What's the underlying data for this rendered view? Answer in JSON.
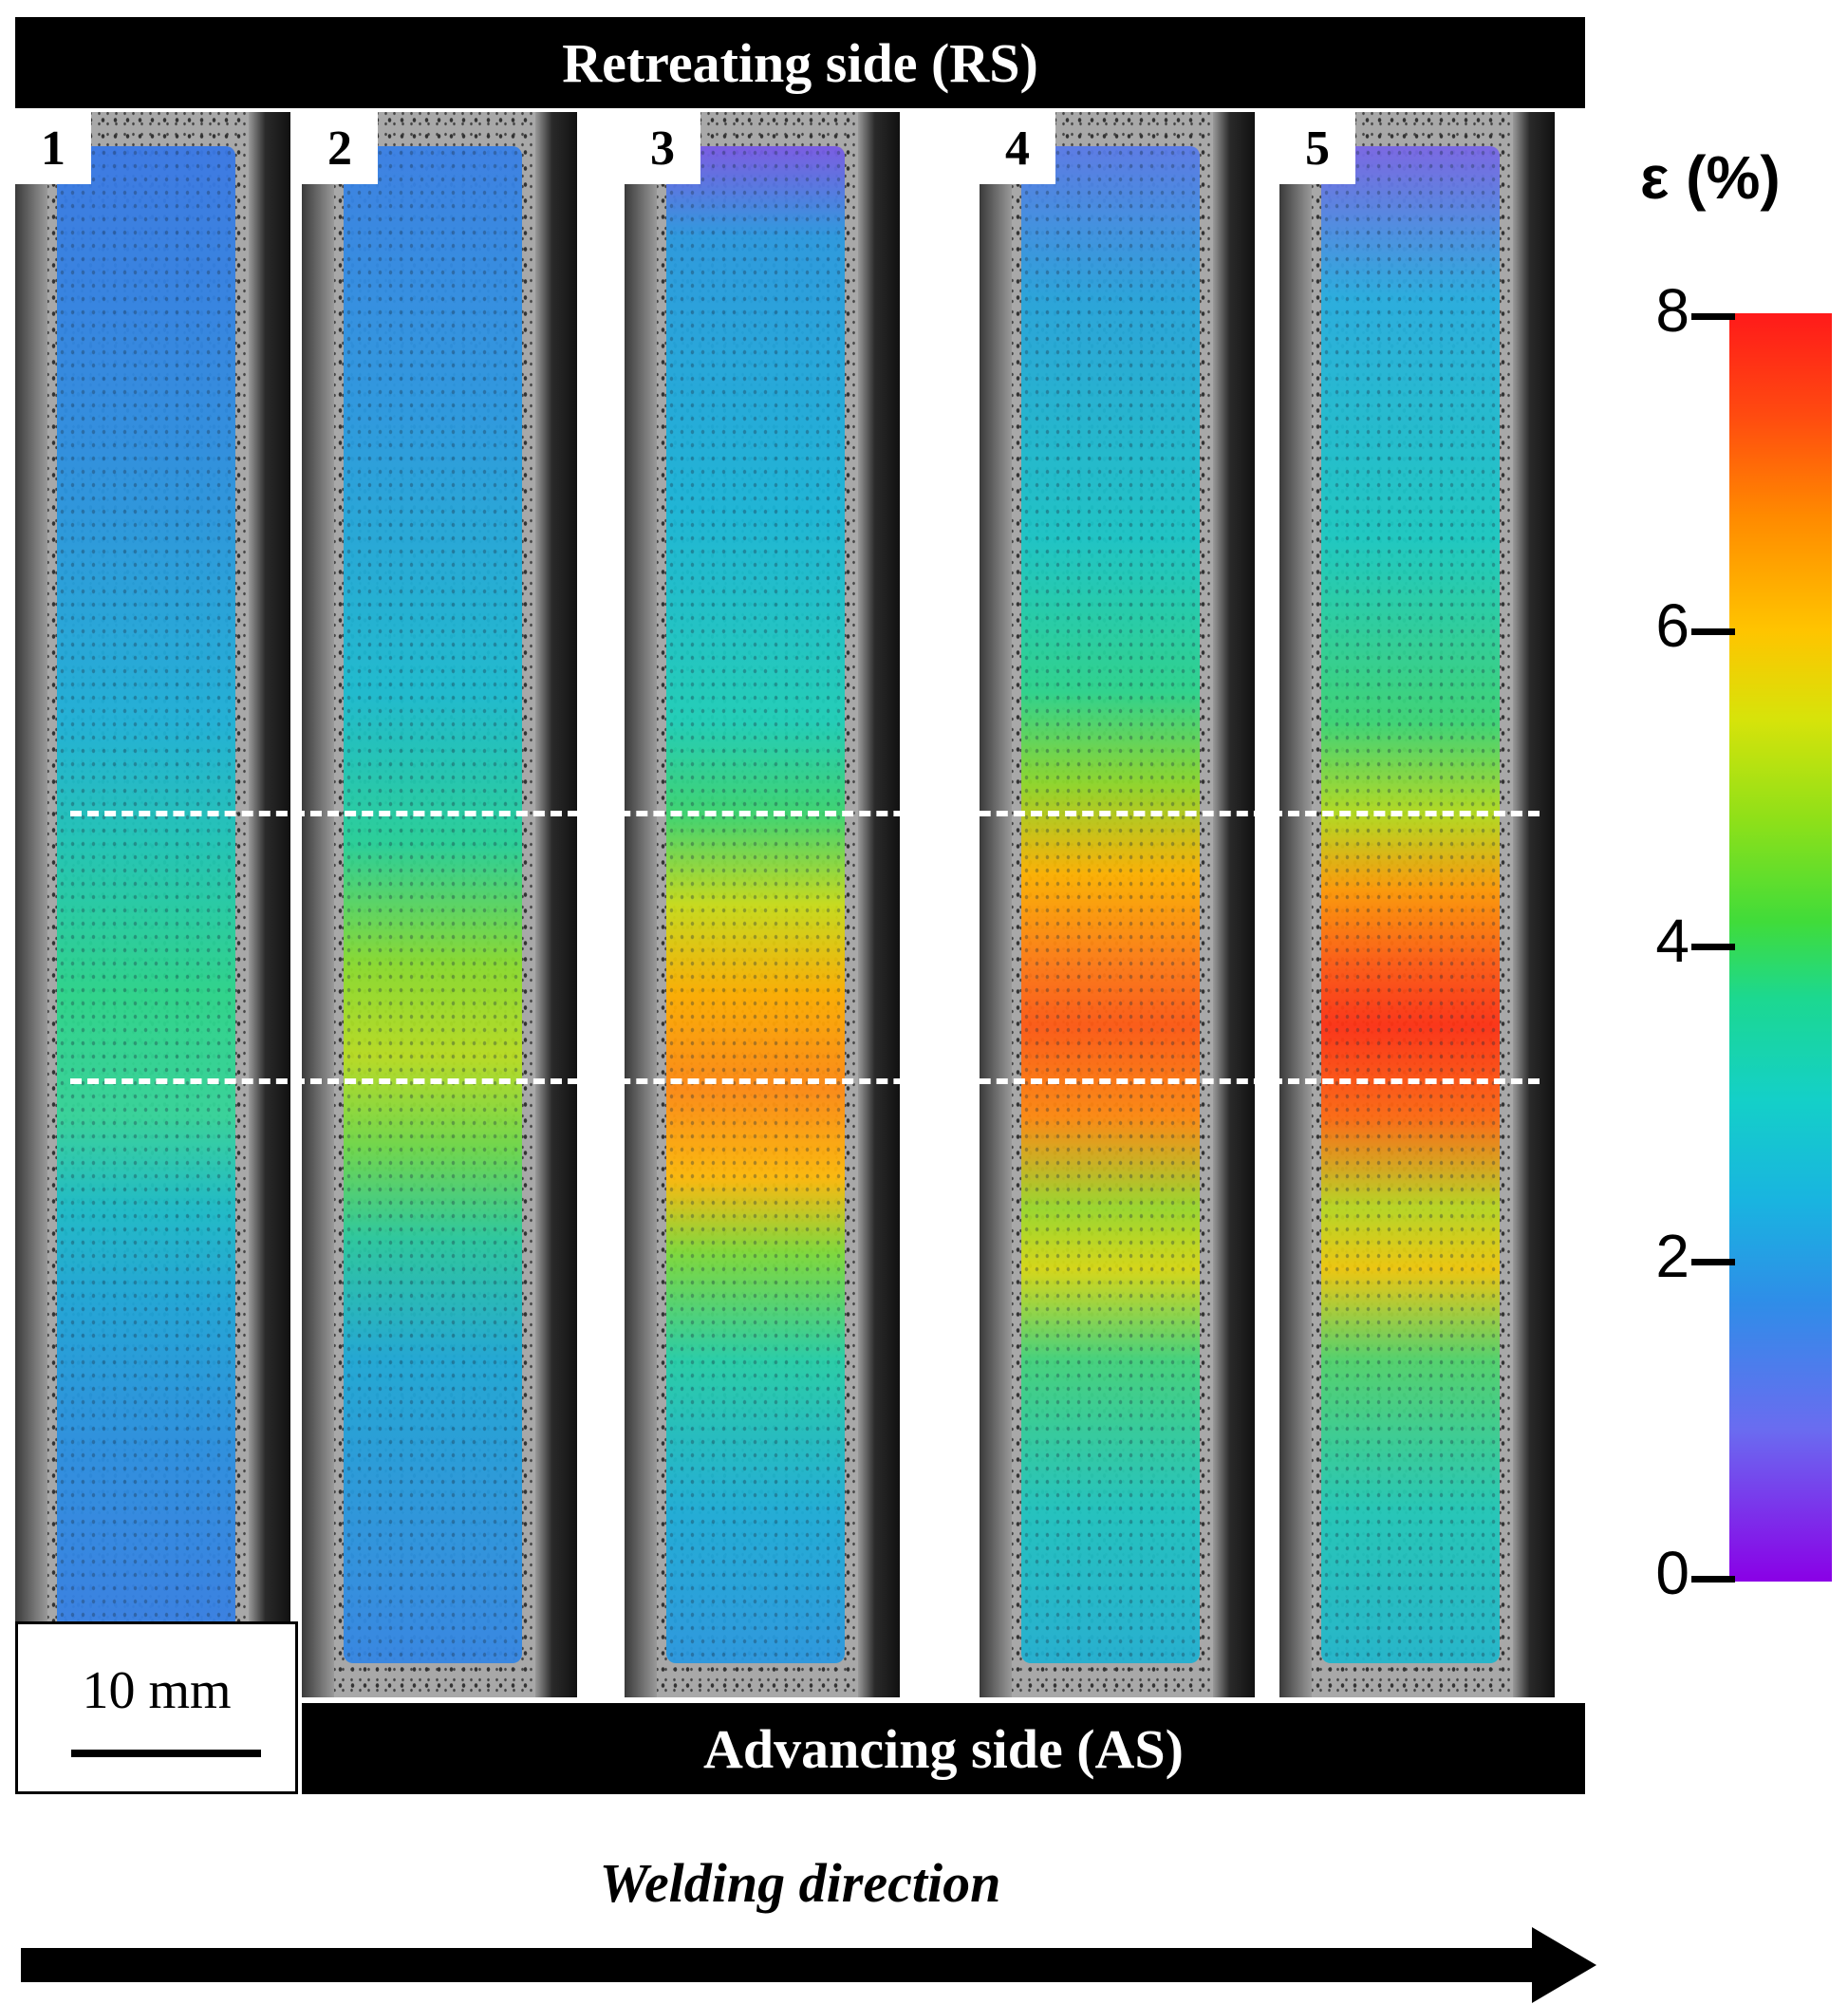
{
  "header": {
    "top_label": "Retreating side (RS)",
    "bottom_label": "Advancing side (AS)"
  },
  "panels": [
    {
      "number": "1",
      "peak_strain_pct": 4.0
    },
    {
      "number": "2",
      "peak_strain_pct": 5.2
    },
    {
      "number": "3",
      "peak_strain_pct": 6.8
    },
    {
      "number": "4",
      "peak_strain_pct": 7.3
    },
    {
      "number": "5",
      "peak_strain_pct": 7.6
    }
  ],
  "scale_bar": {
    "label": "10 mm"
  },
  "colorbar": {
    "title": "ε (%)",
    "ticks": [
      "0",
      "2",
      "4",
      "6",
      "8"
    ],
    "range": [
      0,
      8
    ]
  },
  "direction": {
    "label": "Welding direction"
  },
  "colors": {
    "background": "#ffffff",
    "bars": "#000000",
    "dash": "#ffffff"
  }
}
